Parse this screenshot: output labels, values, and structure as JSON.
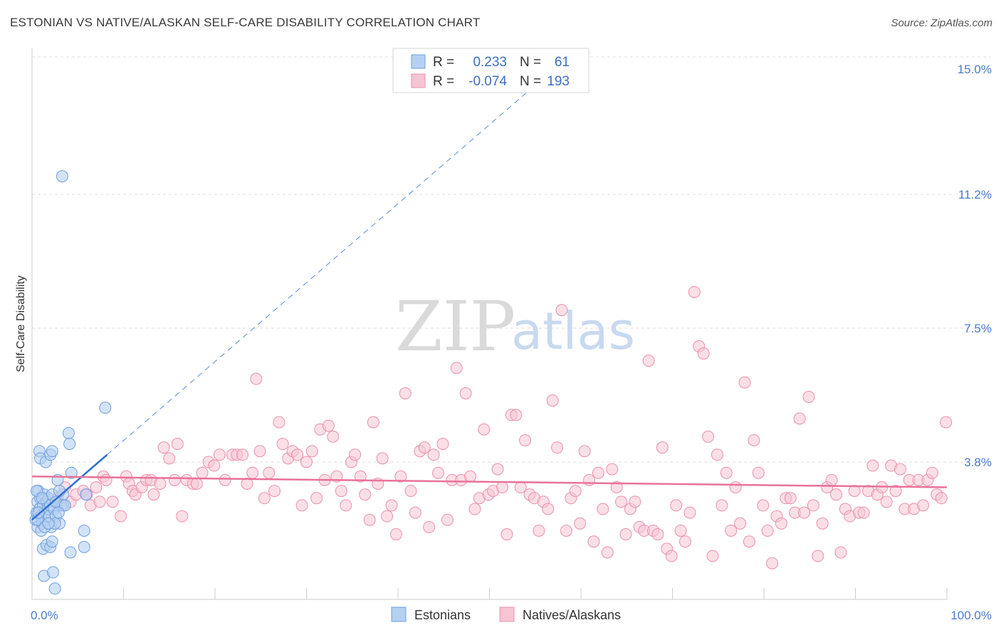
{
  "title": "ESTONIAN VS NATIVE/ALASKAN SELF-CARE DISABILITY CORRELATION CHART",
  "source": "Source: ZipAtlas.com",
  "watermark": {
    "zip": "ZIP",
    "atlas": "atlas"
  },
  "colors": {
    "estonians_fill": "#b6d0f2",
    "estonians_stroke": "#6f9fdc",
    "estonians_line": "#2f6fd0",
    "natives_fill": "#f7c4d4",
    "natives_stroke": "#ea8fae",
    "natives_line": "#e8729a",
    "grid": "#dddddd",
    "tick_text": "#4a7cc9"
  },
  "legend": {
    "rows": [
      {
        "r_label": "R =",
        "r_value": "0.233",
        "n_label": "N =",
        "n_value": "61"
      },
      {
        "r_label": "R =",
        "r_value": "-0.074",
        "n_label": "N =",
        "n_value": "193"
      }
    ]
  },
  "chart_data": {
    "type": "scatter",
    "title": "ESTONIAN VS NATIVE/ALASKAN SELF-CARE DISABILITY CORRELATION CHART",
    "xlabel": "",
    "ylabel": "Self-Care Disability",
    "x_tick_labels": [
      "0.0%",
      "100.0%"
    ],
    "y_tick_labels": [
      "3.8%",
      "7.5%",
      "11.2%",
      "15.0%"
    ],
    "y_ticks": [
      3.8,
      7.5,
      11.2,
      15.0
    ],
    "xlim": [
      0,
      100
    ],
    "ylim": [
      0,
      15.5
    ],
    "grid": true,
    "legend_position": "top-center",
    "series": [
      {
        "name": "Estonians",
        "trend": {
          "x1": 0,
          "y1": 2.2,
          "x2": 8.2,
          "y2": 4.0,
          "extended_x2": 54,
          "extended_y2": 14.0
        },
        "points": [
          [
            0.4,
            2.2
          ],
          [
            0.5,
            2.4
          ],
          [
            0.6,
            2.0
          ],
          [
            0.6,
            2.7
          ],
          [
            0.7,
            3.0
          ],
          [
            0.8,
            2.5
          ],
          [
            0.9,
            2.8
          ],
          [
            1.0,
            2.3
          ],
          [
            1.1,
            2.1
          ],
          [
            1.2,
            2.6
          ],
          [
            1.3,
            2.9
          ],
          [
            1.4,
            2.4
          ],
          [
            1.5,
            2.2
          ],
          [
            1.6,
            2.7
          ],
          [
            1.7,
            2.5
          ],
          [
            1.8,
            2.8
          ],
          [
            1.9,
            2.3
          ],
          [
            2.0,
            2.6
          ],
          [
            2.1,
            2.0
          ],
          [
            2.2,
            2.9
          ],
          [
            2.4,
            2.5
          ],
          [
            2.6,
            2.3
          ],
          [
            2.8,
            2.7
          ],
          [
            3.0,
            2.1
          ],
          [
            3.2,
            2.6
          ],
          [
            3.4,
            2.9
          ],
          [
            0.8,
            4.1
          ],
          [
            0.9,
            3.9
          ],
          [
            1.5,
            3.8
          ],
          [
            2.0,
            4.0
          ],
          [
            2.2,
            4.1
          ],
          [
            4.0,
            4.6
          ],
          [
            4.1,
            4.3
          ],
          [
            4.3,
            3.5
          ],
          [
            2.8,
            3.3
          ],
          [
            3.4,
            2.6
          ],
          [
            1.2,
            1.4
          ],
          [
            1.6,
            1.5
          ],
          [
            2.0,
            1.45
          ],
          [
            2.2,
            1.6
          ],
          [
            4.2,
            1.3
          ],
          [
            5.7,
            1.45
          ],
          [
            5.7,
            1.9
          ],
          [
            1.3,
            0.65
          ],
          [
            2.3,
            0.75
          ],
          [
            2.5,
            0.3
          ],
          [
            8.0,
            5.3
          ],
          [
            3.3,
            11.7
          ],
          [
            0.5,
            3.0
          ],
          [
            0.6,
            2.2
          ],
          [
            1.0,
            1.9
          ],
          [
            1.4,
            2.0
          ],
          [
            2.5,
            2.1
          ],
          [
            3.0,
            3.0
          ],
          [
            5.9,
            2.9
          ],
          [
            2.6,
            2.7
          ],
          [
            1.8,
            2.1
          ],
          [
            0.7,
            2.4
          ],
          [
            1.1,
            2.8
          ],
          [
            3.6,
            2.6
          ],
          [
            2.9,
            2.4
          ]
        ]
      },
      {
        "name": "Natives/Alaskans",
        "trend": {
          "x1": 0,
          "y1": 3.4,
          "x2": 100,
          "y2": 3.1
        },
        "points": [
          [
            1.6,
            2.7
          ],
          [
            2.8,
            2.8
          ],
          [
            3.6,
            3.1
          ],
          [
            4.2,
            2.7
          ],
          [
            4.8,
            2.9
          ],
          [
            5.6,
            3.0
          ],
          [
            6.0,
            2.9
          ],
          [
            6.4,
            2.6
          ],
          [
            7.0,
            3.1
          ],
          [
            7.4,
            2.7
          ],
          [
            7.8,
            3.4
          ],
          [
            8.1,
            3.3
          ],
          [
            8.8,
            2.7
          ],
          [
            9.7,
            2.3
          ],
          [
            10.3,
            3.4
          ],
          [
            10.6,
            3.2
          ],
          [
            11.0,
            3.0
          ],
          [
            11.3,
            2.9
          ],
          [
            12.0,
            3.1
          ],
          [
            12.5,
            3.3
          ],
          [
            13.0,
            3.3
          ],
          [
            13.3,
            2.9
          ],
          [
            14.0,
            3.2
          ],
          [
            14.4,
            4.2
          ],
          [
            15.0,
            3.9
          ],
          [
            15.6,
            3.3
          ],
          [
            15.9,
            4.3
          ],
          [
            16.4,
            2.3
          ],
          [
            16.9,
            3.3
          ],
          [
            17.6,
            3.2
          ],
          [
            18.0,
            3.2
          ],
          [
            18.6,
            3.5
          ],
          [
            19.3,
            3.8
          ],
          [
            19.9,
            3.7
          ],
          [
            20.5,
            4.0
          ],
          [
            21.1,
            3.3
          ],
          [
            21.9,
            4.0
          ],
          [
            22.4,
            4.0
          ],
          [
            23.0,
            4.0
          ],
          [
            23.5,
            3.2
          ],
          [
            24.1,
            3.5
          ],
          [
            24.5,
            6.1
          ],
          [
            24.9,
            4.1
          ],
          [
            25.4,
            2.8
          ],
          [
            25.9,
            3.5
          ],
          [
            26.5,
            3.0
          ],
          [
            27.0,
            4.9
          ],
          [
            27.4,
            4.3
          ],
          [
            28.0,
            3.9
          ],
          [
            28.5,
            4.1
          ],
          [
            29.0,
            4.0
          ],
          [
            29.5,
            2.6
          ],
          [
            30.0,
            3.8
          ],
          [
            30.6,
            4.1
          ],
          [
            31.1,
            2.8
          ],
          [
            31.5,
            4.7
          ],
          [
            32.0,
            3.3
          ],
          [
            32.4,
            4.8
          ],
          [
            32.9,
            4.5
          ],
          [
            33.3,
            3.4
          ],
          [
            33.8,
            3.0
          ],
          [
            34.3,
            2.6
          ],
          [
            34.9,
            3.8
          ],
          [
            35.3,
            4.0
          ],
          [
            35.9,
            3.4
          ],
          [
            36.4,
            2.9
          ],
          [
            36.9,
            2.2
          ],
          [
            37.3,
            4.9
          ],
          [
            37.8,
            3.2
          ],
          [
            38.3,
            3.9
          ],
          [
            38.8,
            2.3
          ],
          [
            39.3,
            2.6
          ],
          [
            39.8,
            1.8
          ],
          [
            40.3,
            3.4
          ],
          [
            40.8,
            5.7
          ],
          [
            41.4,
            3.0
          ],
          [
            41.9,
            2.4
          ],
          [
            42.4,
            4.1
          ],
          [
            42.9,
            4.2
          ],
          [
            43.4,
            2.0
          ],
          [
            43.9,
            4.0
          ],
          [
            44.4,
            3.5
          ],
          [
            44.9,
            4.3
          ],
          [
            45.4,
            2.2
          ],
          [
            45.9,
            3.3
          ],
          [
            46.4,
            6.4
          ],
          [
            46.9,
            3.3
          ],
          [
            47.4,
            5.7
          ],
          [
            47.9,
            3.4
          ],
          [
            48.4,
            2.5
          ],
          [
            48.9,
            2.8
          ],
          [
            49.4,
            4.7
          ],
          [
            49.9,
            2.9
          ],
          [
            50.4,
            3.0
          ],
          [
            50.9,
            3.6
          ],
          [
            51.4,
            3.1
          ],
          [
            51.9,
            1.8
          ],
          [
            52.4,
            5.1
          ],
          [
            52.9,
            5.1
          ],
          [
            53.4,
            3.1
          ],
          [
            53.9,
            4.4
          ],
          [
            54.4,
            2.9
          ],
          [
            54.9,
            2.8
          ],
          [
            55.4,
            1.9
          ],
          [
            55.9,
            2.7
          ],
          [
            56.4,
            2.5
          ],
          [
            56.9,
            5.5
          ],
          [
            57.4,
            4.2
          ],
          [
            57.9,
            8.0
          ],
          [
            58.4,
            1.9
          ],
          [
            58.9,
            2.8
          ],
          [
            59.4,
            3.0
          ],
          [
            59.9,
            2.1
          ],
          [
            60.4,
            4.1
          ],
          [
            60.9,
            3.3
          ],
          [
            61.4,
            1.6
          ],
          [
            61.9,
            3.5
          ],
          [
            62.4,
            2.5
          ],
          [
            62.9,
            1.3
          ],
          [
            63.4,
            3.6
          ],
          [
            63.9,
            3.1
          ],
          [
            64.4,
            2.7
          ],
          [
            64.9,
            1.8
          ],
          [
            65.4,
            2.5
          ],
          [
            65.9,
            2.7
          ],
          [
            66.4,
            2.0
          ],
          [
            66.9,
            1.9
          ],
          [
            67.4,
            6.6
          ],
          [
            67.9,
            1.9
          ],
          [
            68.4,
            1.8
          ],
          [
            68.9,
            4.2
          ],
          [
            69.4,
            1.4
          ],
          [
            69.9,
            1.2
          ],
          [
            70.4,
            2.6
          ],
          [
            70.9,
            1.9
          ],
          [
            71.4,
            1.6
          ],
          [
            71.9,
            2.4
          ],
          [
            72.4,
            8.5
          ],
          [
            72.9,
            7.0
          ],
          [
            73.4,
            6.8
          ],
          [
            73.9,
            4.5
          ],
          [
            74.4,
            1.2
          ],
          [
            74.9,
            4.0
          ],
          [
            75.4,
            2.6
          ],
          [
            75.9,
            3.5
          ],
          [
            76.4,
            1.9
          ],
          [
            76.9,
            3.1
          ],
          [
            77.4,
            2.1
          ],
          [
            77.9,
            6.0
          ],
          [
            78.4,
            1.6
          ],
          [
            78.9,
            4.4
          ],
          [
            79.4,
            3.5
          ],
          [
            79.9,
            2.6
          ],
          [
            80.4,
            1.9
          ],
          [
            80.9,
            1.0
          ],
          [
            81.4,
            2.3
          ],
          [
            81.9,
            2.1
          ],
          [
            82.4,
            2.8
          ],
          [
            82.9,
            2.8
          ],
          [
            83.4,
            2.4
          ],
          [
            83.9,
            5.0
          ],
          [
            84.4,
            2.4
          ],
          [
            84.9,
            5.6
          ],
          [
            85.4,
            2.6
          ],
          [
            85.9,
            1.2
          ],
          [
            86.4,
            2.1
          ],
          [
            86.9,
            3.1
          ],
          [
            87.4,
            3.3
          ],
          [
            87.9,
            2.9
          ],
          [
            88.4,
            1.3
          ],
          [
            88.9,
            2.5
          ],
          [
            89.4,
            2.3
          ],
          [
            89.9,
            3.0
          ],
          [
            90.4,
            2.4
          ],
          [
            90.9,
            2.4
          ],
          [
            91.4,
            3.0
          ],
          [
            91.9,
            3.7
          ],
          [
            92.4,
            2.9
          ],
          [
            92.9,
            3.1
          ],
          [
            93.4,
            2.7
          ],
          [
            93.9,
            3.7
          ],
          [
            94.4,
            3.0
          ],
          [
            94.9,
            3.6
          ],
          [
            95.4,
            2.5
          ],
          [
            95.9,
            3.3
          ],
          [
            96.4,
            2.5
          ],
          [
            96.9,
            3.3
          ],
          [
            97.4,
            2.6
          ],
          [
            97.9,
            3.3
          ],
          [
            98.4,
            3.5
          ],
          [
            98.9,
            2.9
          ],
          [
            99.4,
            2.8
          ],
          [
            99.9,
            4.9
          ]
        ]
      }
    ]
  }
}
